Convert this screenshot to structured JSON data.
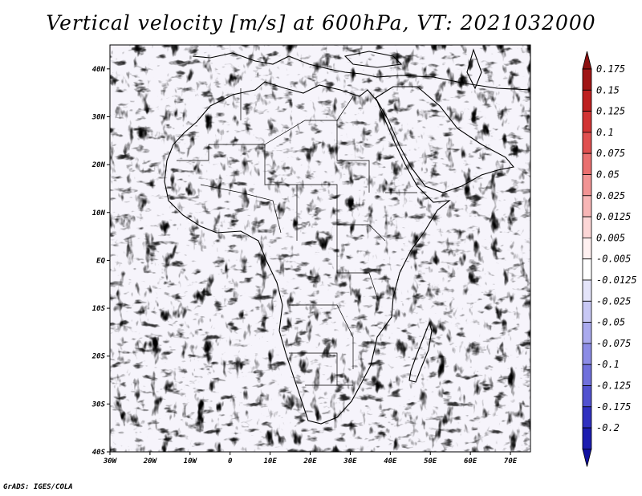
{
  "title": "Vertical velocity [m/s] at 600hPa, VT: 2021032000",
  "footer": "GrADS: IGES/COLA",
  "map": {
    "lon_range": [
      -30,
      75
    ],
    "lat_range": [
      -40,
      45
    ],
    "lat_ticks": [
      {
        "value": 40,
        "label": "40N"
      },
      {
        "value": 30,
        "label": "30N"
      },
      {
        "value": 20,
        "label": "20N"
      },
      {
        "value": 10,
        "label": "10N"
      },
      {
        "value": 0,
        "label": "EQ"
      },
      {
        "value": -10,
        "label": "10S"
      },
      {
        "value": -20,
        "label": "20S"
      },
      {
        "value": -30,
        "label": "30S"
      },
      {
        "value": -40,
        "label": "40S"
      }
    ],
    "lon_ticks": [
      {
        "value": -30,
        "label": "30W"
      },
      {
        "value": -20,
        "label": "20W"
      },
      {
        "value": -10,
        "label": "10W"
      },
      {
        "value": 0,
        "label": "0"
      },
      {
        "value": 10,
        "label": "10E"
      },
      {
        "value": 20,
        "label": "20E"
      },
      {
        "value": 30,
        "label": "30E"
      },
      {
        "value": 40,
        "label": "40E"
      },
      {
        "value": 50,
        "label": "50E"
      },
      {
        "value": 60,
        "label": "60E"
      },
      {
        "value": 70,
        "label": "70E"
      }
    ]
  },
  "colorbar": {
    "levels": [
      {
        "label": "0.175",
        "color": "#a01414"
      },
      {
        "label": "0.15",
        "color": "#be2020"
      },
      {
        "label": "0.125",
        "color": "#d23434"
      },
      {
        "label": "0.1",
        "color": "#e05050"
      },
      {
        "label": "0.075",
        "color": "#ea7070"
      },
      {
        "label": "0.05",
        "color": "#f29494"
      },
      {
        "label": "0.025",
        "color": "#f8b6b6"
      },
      {
        "label": "0.0125",
        "color": "#fcd6d6"
      },
      {
        "label": "0.005",
        "color": "#fff0f0"
      },
      {
        "label": "-0.005",
        "color": "#ffffff"
      },
      {
        "label": "-0.0125",
        "color": "#e4e4fa"
      },
      {
        "label": "-0.025",
        "color": "#c8c8f4"
      },
      {
        "label": "-0.05",
        "color": "#aaaaee"
      },
      {
        "label": "-0.075",
        "color": "#8c8ce6"
      },
      {
        "label": "-0.1",
        "color": "#7070dc"
      },
      {
        "label": "-0.125",
        "color": "#5252d0"
      },
      {
        "label": "-0.175",
        "color": "#3030c0"
      },
      {
        "label": "-0.2",
        "color": "#1c1cb0"
      }
    ],
    "top_arrow_color": "#8c1010",
    "bottom_arrow_color": "#1010a0",
    "field_red": "#e06060",
    "field_blue": "#8a8ae6"
  }
}
